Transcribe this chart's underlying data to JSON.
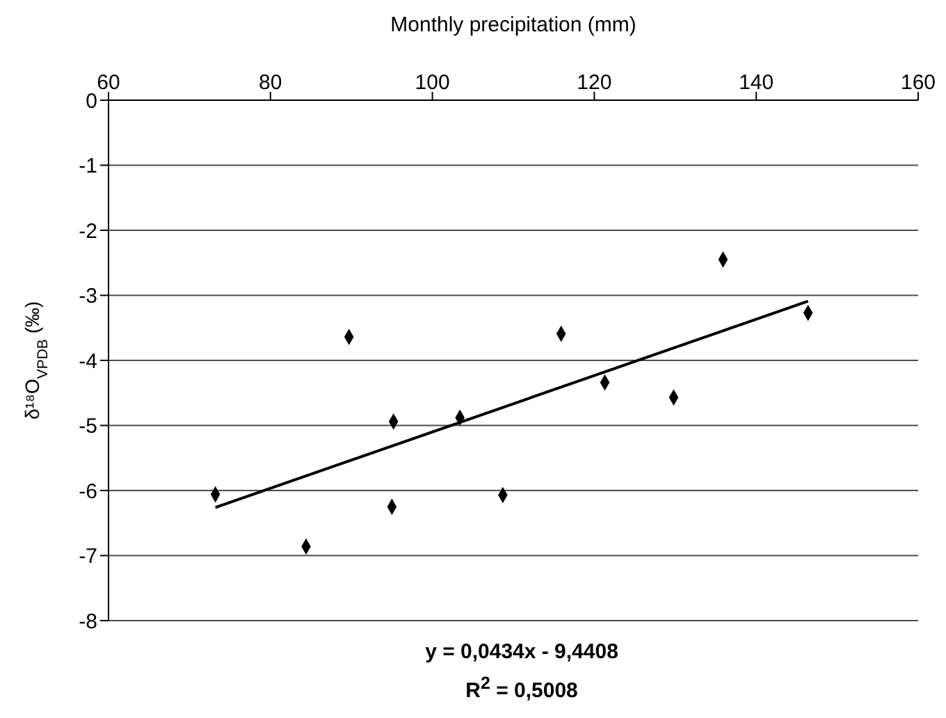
{
  "chart_data": {
    "type": "scatter",
    "xlabel": "Monthly precipitation (mm)",
    "ylabel": "δ¹⁸O$_{VPDB}$ (‰)",
    "xlim": [
      60,
      160
    ],
    "xticks": [
      60,
      80,
      100,
      120,
      140,
      160
    ],
    "ylim": [
      -8,
      0
    ],
    "yticks": [
      -8,
      -7,
      -6,
      -5,
      -4,
      -3,
      -2,
      -1,
      0
    ],
    "grid": "y",
    "marker": "diamond",
    "series": [
      {
        "color": "#000000",
        "x": [
          73.2,
          84.4,
          89.7,
          95.2,
          95.0,
          103.4,
          108.7,
          115.9,
          121.3,
          129.8,
          135.9,
          146.4
        ],
        "values": [
          -6.06,
          -6.86,
          -3.64,
          -4.94,
          -6.25,
          -4.88,
          -6.07,
          -3.59,
          -4.34,
          -4.57,
          -2.45,
          -3.27
        ]
      },
      {
        "type": "line",
        "color": "#000000",
        "marker": "none",
        "x": [
          73.2,
          146.4
        ],
        "values": [
          -6.26,
          -3.09
        ]
      }
    ],
    "annotations": [
      "y = 0,0434x - 9,4408",
      "R$^{2}$ = 0,5008"
    ]
  }
}
